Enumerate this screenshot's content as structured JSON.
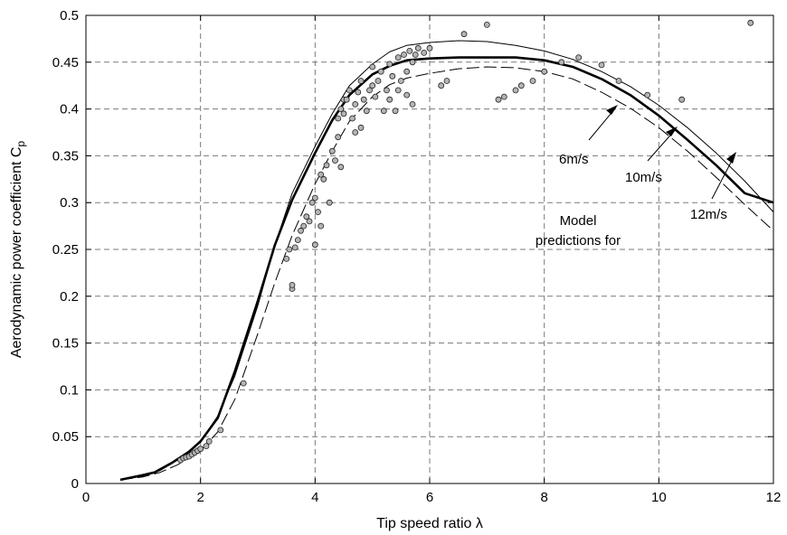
{
  "chart_data": {
    "type": "scatter",
    "title": "",
    "xlabel": "Tip speed ratio λ",
    "ylabel_main": "Aerodynamic power coefficient C",
    "ylabel_sub": "p",
    "xlim": [
      0,
      12
    ],
    "ylim": [
      0,
      0.5
    ],
    "x_ticks": [
      0,
      2,
      4,
      6,
      8,
      10,
      12
    ],
    "y_ticks": [
      0,
      0.05,
      0.1,
      0.15,
      0.2,
      0.25,
      0.3,
      0.35,
      0.4,
      0.45,
      0.5
    ],
    "x_tick_labels": [
      "0",
      "2",
      "4",
      "6",
      "8",
      "10",
      "12"
    ],
    "y_tick_labels": [
      "0",
      "0.05",
      "0.1",
      "0.15",
      "0.2",
      "0.25",
      "0.3",
      "0.35",
      "0.4",
      "0.45",
      "0.5"
    ],
    "grid": true,
    "series": [
      {
        "style": "thin-solid",
        "label": "10m/s",
        "x": [
          0.6,
          1.0,
          1.3,
          1.6,
          2.0,
          2.3,
          2.6,
          3.0,
          3.3,
          3.6,
          4.0,
          4.3,
          4.6,
          5.0,
          5.3,
          5.6,
          6.0,
          6.5,
          7.0,
          7.5,
          8.0,
          8.5,
          9.0,
          9.5,
          10.0,
          10.5,
          11.0,
          11.5,
          12.0
        ],
        "y": [
          0.004,
          0.008,
          0.014,
          0.025,
          0.045,
          0.072,
          0.115,
          0.19,
          0.255,
          0.31,
          0.36,
          0.395,
          0.425,
          0.448,
          0.461,
          0.468,
          0.471,
          0.473,
          0.472,
          0.468,
          0.462,
          0.453,
          0.44,
          0.424,
          0.404,
          0.38,
          0.353,
          0.323,
          0.29
        ]
      },
      {
        "style": "thick-solid",
        "label": "6m/s",
        "x": [
          0.6,
          1.0,
          1.2,
          1.5,
          1.8,
          2.0,
          2.3,
          2.6,
          3.0,
          3.3,
          3.6,
          4.0,
          4.3,
          4.6,
          5.0,
          5.3,
          5.6,
          6.0,
          6.5,
          7.0,
          7.5,
          8.0,
          8.5,
          9.0,
          9.5,
          10.0,
          10.5,
          11.0,
          11.5,
          12.0
        ],
        "y": [
          0.004,
          0.009,
          0.012,
          0.022,
          0.034,
          0.045,
          0.07,
          0.12,
          0.195,
          0.255,
          0.303,
          0.353,
          0.388,
          0.415,
          0.437,
          0.446,
          0.452,
          0.454,
          0.455,
          0.455,
          0.455,
          0.452,
          0.445,
          0.432,
          0.415,
          0.393,
          0.367,
          0.34,
          0.31,
          0.3
        ]
      },
      {
        "style": "dashed",
        "label": "12m/s",
        "x": [
          0.6,
          1.0,
          1.3,
          1.6,
          2.0,
          2.3,
          2.6,
          3.0,
          3.3,
          3.6,
          4.0,
          4.3,
          4.6,
          5.0,
          5.3,
          5.6,
          6.0,
          6.5,
          7.0,
          7.5,
          8.0,
          8.5,
          9.0,
          9.5,
          10.0,
          10.5,
          11.0,
          11.5,
          12.0
        ],
        "y": [
          0.004,
          0.007,
          0.012,
          0.02,
          0.035,
          0.055,
          0.09,
          0.16,
          0.215,
          0.265,
          0.32,
          0.355,
          0.387,
          0.413,
          0.426,
          0.433,
          0.438,
          0.443,
          0.445,
          0.444,
          0.44,
          0.432,
          0.418,
          0.401,
          0.38,
          0.355,
          0.327,
          0.298,
          0.27
        ]
      }
    ],
    "measured_points": {
      "x": [
        1.65,
        1.7,
        1.75,
        1.8,
        1.85,
        1.9,
        1.95,
        2.0,
        2.1,
        2.15,
        2.35,
        2.75,
        3.5,
        3.55,
        3.6,
        3.6,
        3.65,
        3.7,
        3.75,
        3.8,
        3.85,
        3.9,
        3.95,
        4.0,
        4.0,
        4.05,
        4.1,
        4.1,
        4.15,
        4.2,
        4.25,
        4.3,
        4.35,
        4.4,
        4.4,
        4.45,
        4.45,
        4.5,
        4.5,
        4.55,
        4.6,
        4.65,
        4.7,
        4.7,
        4.75,
        4.8,
        4.8,
        4.85,
        4.9,
        4.95,
        5.0,
        5.0,
        5.05,
        5.1,
        5.15,
        5.2,
        5.25,
        5.3,
        5.3,
        5.35,
        5.4,
        5.45,
        5.45,
        5.5,
        5.55,
        5.6,
        5.6,
        5.65,
        5.7,
        5.7,
        5.75,
        5.8,
        5.9,
        6.0,
        6.2,
        6.3,
        6.6,
        7.0,
        7.2,
        7.3,
        7.5,
        7.6,
        7.8,
        8.0,
        8.3,
        8.6,
        9.0,
        9.3,
        9.8,
        10.4,
        11.6
      ],
      "y": [
        0.025,
        0.027,
        0.028,
        0.029,
        0.031,
        0.033,
        0.035,
        0.037,
        0.04,
        0.045,
        0.057,
        0.107,
        0.24,
        0.25,
        0.208,
        0.212,
        0.252,
        0.26,
        0.27,
        0.275,
        0.285,
        0.28,
        0.3,
        0.305,
        0.255,
        0.29,
        0.275,
        0.33,
        0.325,
        0.34,
        0.3,
        0.355,
        0.345,
        0.37,
        0.39,
        0.4,
        0.338,
        0.41,
        0.395,
        0.41,
        0.42,
        0.39,
        0.405,
        0.375,
        0.418,
        0.38,
        0.43,
        0.41,
        0.398,
        0.42,
        0.445,
        0.425,
        0.413,
        0.43,
        0.44,
        0.398,
        0.42,
        0.448,
        0.41,
        0.435,
        0.398,
        0.455,
        0.42,
        0.43,
        0.458,
        0.44,
        0.415,
        0.462,
        0.45,
        0.405,
        0.458,
        0.465,
        0.46,
        0.465,
        0.425,
        0.43,
        0.48,
        0.49,
        0.41,
        0.413,
        0.42,
        0.425,
        0.43,
        0.44,
        0.45,
        0.455,
        0.447,
        0.43,
        0.415,
        0.41,
        0.492
      ]
    },
    "annotations": {
      "label_6": "6m/s",
      "label_10": "10m/s",
      "label_12": "12m/s",
      "model_line1": "Model",
      "model_line2": "predictions for"
    }
  }
}
